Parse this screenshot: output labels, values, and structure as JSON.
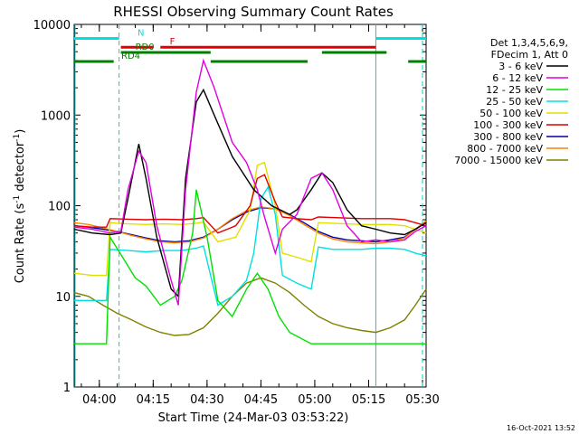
{
  "chart_data": {
    "type": "line",
    "title": "RHESSI Observing Summary Count Rates",
    "xlabel": "Start Time (24-Mar-03 03:53:22)",
    "ylabel_main": "Count Rate (s",
    "ylabel_sup": "-1",
    "ylabel_rest": " detector",
    "ylabel_end": ")",
    "footer": "16-Oct-2021 13:52",
    "ylog": true,
    "xlim_min": [
      0,
      98
    ],
    "ylim": [
      1,
      10000
    ],
    "x_ticks": [
      {
        "label": "04:00",
        "min": 7
      },
      {
        "label": "04:15",
        "min": 22
      },
      {
        "label": "04:30",
        "min": 37
      },
      {
        "label": "04:45",
        "min": 52
      },
      {
        "label": "05:00",
        "min": 67
      },
      {
        "label": "05:15",
        "min": 82
      },
      {
        "label": "05:30",
        "min": 97
      }
    ],
    "y_ticks": [
      {
        "label": "1",
        "v": 1
      },
      {
        "label": "10",
        "v": 10
      },
      {
        "label": "100",
        "v": 100
      },
      {
        "label": "1000",
        "v": 1000
      },
      {
        "label": "10000",
        "v": 10000
      }
    ],
    "legend_header": [
      "Det 1,3,4,5,6,9,",
      "FDecim 1, Att 0"
    ],
    "series": [
      {
        "name": "3 - 6 keV",
        "color": "#000000",
        "pts": [
          [
            0,
            55
          ],
          [
            5,
            50
          ],
          [
            10,
            48
          ],
          [
            13,
            50
          ],
          [
            15,
            120
          ],
          [
            18,
            480
          ],
          [
            20,
            200
          ],
          [
            23,
            45
          ],
          [
            27,
            12
          ],
          [
            29,
            10
          ],
          [
            31,
            200
          ],
          [
            34,
            1400
          ],
          [
            36,
            1900
          ],
          [
            39,
            1000
          ],
          [
            44,
            350
          ],
          [
            50,
            150
          ],
          [
            55,
            100
          ],
          [
            60,
            80
          ],
          [
            62,
            90
          ],
          [
            66,
            150
          ],
          [
            69,
            230
          ],
          [
            72,
            180
          ],
          [
            76,
            90
          ],
          [
            80,
            60
          ],
          [
            84,
            55
          ],
          [
            88,
            50
          ],
          [
            92,
            48
          ],
          [
            95,
            55
          ],
          [
            98,
            65
          ]
        ]
      },
      {
        "name": "6 - 12 keV",
        "color": "#e000e0",
        "pts": [
          [
            0,
            58
          ],
          [
            5,
            55
          ],
          [
            10,
            50
          ],
          [
            13,
            52
          ],
          [
            15,
            150
          ],
          [
            18,
            400
          ],
          [
            20,
            300
          ],
          [
            23,
            60
          ],
          [
            27,
            15
          ],
          [
            29,
            8
          ],
          [
            31,
            150
          ],
          [
            34,
            1800
          ],
          [
            36,
            4000
          ],
          [
            39,
            2000
          ],
          [
            44,
            500
          ],
          [
            48,
            300
          ],
          [
            51,
            150
          ],
          [
            53,
            75
          ],
          [
            56,
            30
          ],
          [
            58,
            55
          ],
          [
            62,
            80
          ],
          [
            66,
            200
          ],
          [
            69,
            230
          ],
          [
            72,
            150
          ],
          [
            76,
            60
          ],
          [
            80,
            40
          ],
          [
            84,
            42
          ],
          [
            88,
            40
          ],
          [
            92,
            42
          ],
          [
            95,
            52
          ],
          [
            98,
            60
          ]
        ]
      },
      {
        "name": "12 - 25 keV",
        "color": "#00e000",
        "pts": [
          [
            0,
            3
          ],
          [
            5,
            3
          ],
          [
            9,
            3
          ],
          [
            10,
            45
          ],
          [
            14,
            25
          ],
          [
            17,
            16
          ],
          [
            20,
            13
          ],
          [
            24,
            8
          ],
          [
            28,
            10
          ],
          [
            30,
            15
          ],
          [
            33,
            50
          ],
          [
            34,
            150
          ],
          [
            37,
            45
          ],
          [
            40,
            9
          ],
          [
            44,
            6
          ],
          [
            48,
            12
          ],
          [
            51,
            18
          ],
          [
            54,
            12
          ],
          [
            57,
            6
          ],
          [
            60,
            4
          ],
          [
            66,
            3
          ],
          [
            70,
            3
          ],
          [
            76,
            3
          ],
          [
            80,
            3
          ],
          [
            85,
            3
          ],
          [
            90,
            3
          ],
          [
            95,
            3
          ],
          [
            98,
            3
          ]
        ]
      },
      {
        "name": "25 - 50 keV",
        "color": "#00e0e0",
        "pts": [
          [
            0,
            9
          ],
          [
            5,
            9
          ],
          [
            9,
            9
          ],
          [
            10,
            33
          ],
          [
            15,
            32
          ],
          [
            20,
            31
          ],
          [
            25,
            32
          ],
          [
            30,
            32
          ],
          [
            34,
            34
          ],
          [
            36,
            36
          ],
          [
            40,
            8
          ],
          [
            44,
            10
          ],
          [
            48,
            15
          ],
          [
            50,
            30
          ],
          [
            52,
            120
          ],
          [
            54,
            160
          ],
          [
            56,
            80
          ],
          [
            58,
            17
          ],
          [
            62,
            14
          ],
          [
            66,
            12
          ],
          [
            68,
            35
          ],
          [
            72,
            33
          ],
          [
            76,
            33
          ],
          [
            80,
            33
          ],
          [
            84,
            34
          ],
          [
            88,
            34
          ],
          [
            92,
            33
          ],
          [
            95,
            30
          ],
          [
            98,
            28
          ]
        ]
      },
      {
        "name": "50 - 100 keV",
        "color": "#e0e000",
        "pts": [
          [
            0,
            18
          ],
          [
            5,
            17
          ],
          [
            9,
            17
          ],
          [
            10,
            65
          ],
          [
            15,
            63
          ],
          [
            20,
            62
          ],
          [
            25,
            63
          ],
          [
            30,
            62
          ],
          [
            34,
            64
          ],
          [
            36,
            66
          ],
          [
            40,
            40
          ],
          [
            45,
            45
          ],
          [
            49,
            90
          ],
          [
            51,
            280
          ],
          [
            53,
            300
          ],
          [
            56,
            100
          ],
          [
            58,
            30
          ],
          [
            62,
            27
          ],
          [
            66,
            24
          ],
          [
            68,
            65
          ],
          [
            72,
            64
          ],
          [
            76,
            63
          ],
          [
            80,
            62
          ],
          [
            84,
            62
          ],
          [
            88,
            62
          ],
          [
            92,
            60
          ],
          [
            95,
            55
          ],
          [
            98,
            50
          ]
        ]
      },
      {
        "name": "100 - 300 keV",
        "color": "#e00000",
        "pts": [
          [
            0,
            60
          ],
          [
            5,
            58
          ],
          [
            9,
            58
          ],
          [
            10,
            72
          ],
          [
            15,
            71
          ],
          [
            20,
            70
          ],
          [
            25,
            71
          ],
          [
            30,
            70
          ],
          [
            34,
            72
          ],
          [
            36,
            74
          ],
          [
            40,
            50
          ],
          [
            45,
            60
          ],
          [
            49,
            100
          ],
          [
            51,
            200
          ],
          [
            53,
            220
          ],
          [
            56,
            110
          ],
          [
            58,
            75
          ],
          [
            62,
            72
          ],
          [
            66,
            70
          ],
          [
            68,
            75
          ],
          [
            72,
            74
          ],
          [
            76,
            73
          ],
          [
            80,
            72
          ],
          [
            84,
            72
          ],
          [
            88,
            72
          ],
          [
            92,
            70
          ],
          [
            95,
            65
          ],
          [
            98,
            60
          ]
        ]
      },
      {
        "name": "300 - 800 keV",
        "color": "#0000a0",
        "pts": [
          [
            0,
            60
          ],
          [
            4,
            58
          ],
          [
            8,
            55
          ],
          [
            12,
            52
          ],
          [
            16,
            48
          ],
          [
            20,
            44
          ],
          [
            24,
            41
          ],
          [
            28,
            40
          ],
          [
            32,
            41
          ],
          [
            36,
            45
          ],
          [
            40,
            55
          ],
          [
            44,
            70
          ],
          [
            48,
            85
          ],
          [
            52,
            95
          ],
          [
            56,
            92
          ],
          [
            60,
            80
          ],
          [
            64,
            65
          ],
          [
            68,
            52
          ],
          [
            72,
            45
          ],
          [
            76,
            42
          ],
          [
            80,
            41
          ],
          [
            84,
            40
          ],
          [
            88,
            42
          ],
          [
            92,
            45
          ],
          [
            95,
            55
          ],
          [
            98,
            65
          ]
        ]
      },
      {
        "name": "800 - 7000 keV",
        "color": "#ff8000",
        "pts": [
          [
            0,
            65
          ],
          [
            4,
            62
          ],
          [
            8,
            57
          ],
          [
            12,
            52
          ],
          [
            16,
            47
          ],
          [
            20,
            43
          ],
          [
            24,
            40
          ],
          [
            28,
            39
          ],
          [
            32,
            40
          ],
          [
            36,
            44
          ],
          [
            40,
            55
          ],
          [
            44,
            72
          ],
          [
            48,
            88
          ],
          [
            52,
            97
          ],
          [
            56,
            92
          ],
          [
            60,
            78
          ],
          [
            64,
            62
          ],
          [
            68,
            50
          ],
          [
            72,
            43
          ],
          [
            76,
            40
          ],
          [
            80,
            39
          ],
          [
            84,
            38
          ],
          [
            88,
            40
          ],
          [
            92,
            44
          ],
          [
            95,
            55
          ],
          [
            98,
            68
          ]
        ]
      },
      {
        "name": "7000 - 15000 keV",
        "color": "#808000",
        "pts": [
          [
            0,
            11
          ],
          [
            4,
            10
          ],
          [
            8,
            8
          ],
          [
            12,
            6.5
          ],
          [
            16,
            5.5
          ],
          [
            20,
            4.6
          ],
          [
            24,
            4
          ],
          [
            28,
            3.7
          ],
          [
            32,
            3.8
          ],
          [
            36,
            4.5
          ],
          [
            40,
            6.5
          ],
          [
            44,
            10
          ],
          [
            48,
            14
          ],
          [
            52,
            16
          ],
          [
            56,
            14
          ],
          [
            60,
            11
          ],
          [
            64,
            8
          ],
          [
            68,
            6
          ],
          [
            72,
            5
          ],
          [
            76,
            4.5
          ],
          [
            80,
            4.2
          ],
          [
            84,
            4
          ],
          [
            88,
            4.5
          ],
          [
            92,
            5.5
          ],
          [
            95,
            8
          ],
          [
            98,
            12
          ]
        ]
      }
    ],
    "flag_bars": [
      {
        "label": "N",
        "color": "#00e0e0",
        "level": 7000,
        "segments": [
          [
            0,
            12.5
          ],
          [
            84,
            98
          ]
        ]
      },
      {
        "label": "F",
        "color": "#e00000",
        "level": 5600,
        "segments": [
          [
            13,
            22
          ],
          [
            24,
            84
          ]
        ]
      },
      {
        "label": "RD0",
        "color": "#008000",
        "level": 4900,
        "segments": [
          [
            13,
            38
          ],
          [
            69,
            87
          ]
        ]
      },
      {
        "label": "RD4",
        "color": "#008000",
        "level": 3900,
        "segments": [
          [
            0,
            11
          ],
          [
            38,
            65
          ],
          [
            93,
            98
          ]
        ]
      }
    ],
    "vlines_solid": [
      84
    ],
    "vlines_dashed": [
      12.5,
      97
    ]
  }
}
